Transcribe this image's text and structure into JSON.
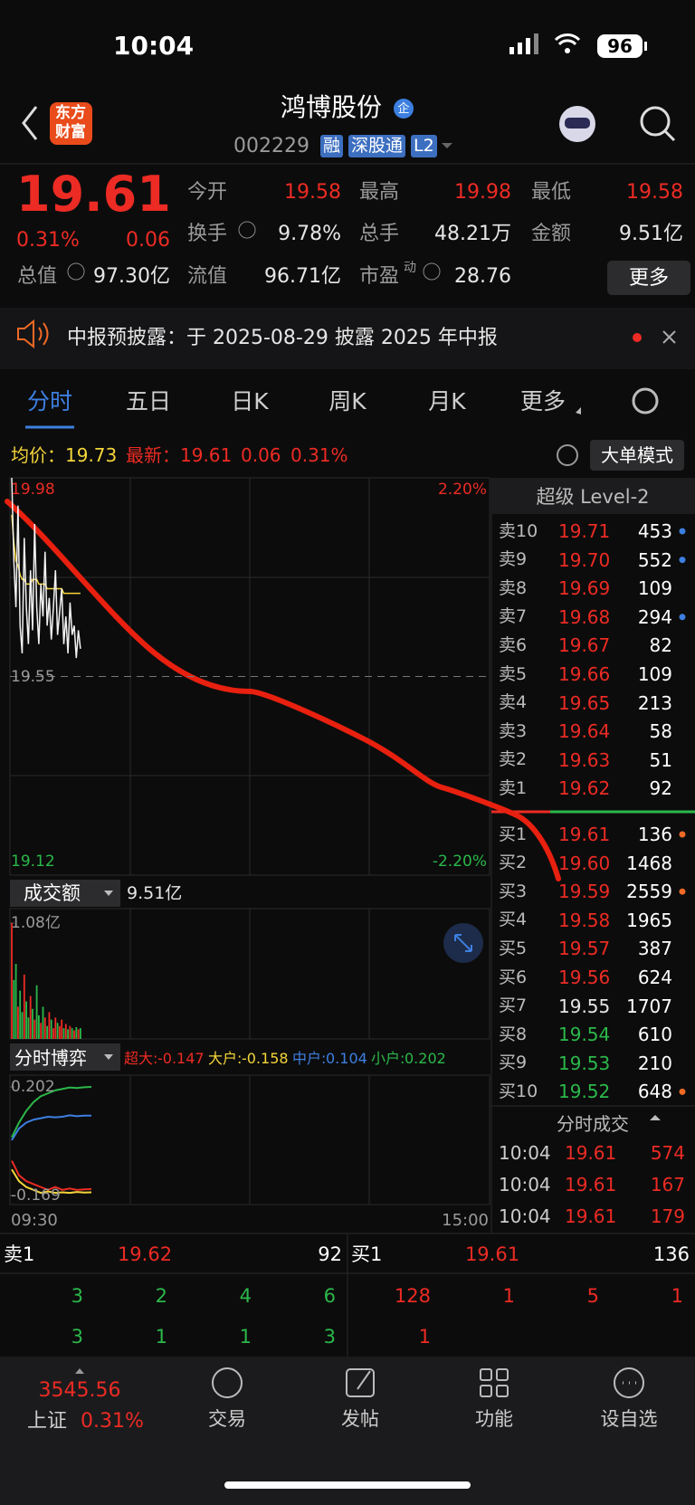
{
  "status": {
    "time": "10:04",
    "battery": "96"
  },
  "header": {
    "logo": [
      "东方",
      "财富"
    ],
    "title": "鸿博股份",
    "badge": "企",
    "code": "002229",
    "tags": [
      "融",
      "深股通",
      "L2"
    ]
  },
  "quote": {
    "price": "19.61",
    "percent": "0.31%",
    "change": "0.06",
    "fields": [
      {
        "label": "今开",
        "value": "19.58"
      },
      {
        "label": "最高",
        "value": "19.98"
      },
      {
        "label": "最低",
        "value": "19.58"
      },
      {
        "label": "换手",
        "value": "9.78%"
      },
      {
        "label": "总手",
        "value": "48.21万"
      },
      {
        "label": "金额",
        "value": "9.51亿"
      },
      {
        "label": "总值",
        "value": "97.30亿"
      },
      {
        "label": "流值",
        "value": "96.71亿"
      },
      {
        "label": "市盈",
        "value": "28.76"
      }
    ],
    "pe_mark": "动",
    "more": "更多"
  },
  "notice": {
    "text": "中报预披露：于 2025-08-29 披露 2025 年中报"
  },
  "tabs": [
    "分时",
    "五日",
    "日K",
    "周K",
    "月K",
    "更多"
  ],
  "infobar": {
    "avg_label": "均价：",
    "avg": "19.73",
    "latest_label": "最新：",
    "latest": "19.61",
    "change": "0.06",
    "percent": "0.31%",
    "mode": "大单模式"
  },
  "intraday": {
    "ylim": [
      19.12,
      19.98
    ],
    "yticks": [
      19.12,
      19.55,
      19.98
    ],
    "y2lim": [
      -2.2,
      2.2
    ],
    "y2ticks": [
      {
        "value": -2.2,
        "label": "-2.20%"
      },
      {
        "value": 2.2,
        "label": "2.20%"
      }
    ],
    "price": [
      19.98,
      19.8,
      19.7,
      19.92,
      19.66,
      19.6,
      19.85,
      19.7,
      19.62,
      19.78,
      19.65,
      19.88,
      19.7,
      19.62,
      19.75,
      19.68,
      19.82,
      19.66,
      19.72,
      19.63,
      19.7,
      19.78,
      19.64,
      19.69,
      19.74,
      19.62,
      19.68,
      19.6,
      19.71,
      19.64,
      19.66,
      19.59,
      19.65,
      19.61
    ],
    "avg": [
      19.9,
      19.84,
      19.8,
      19.79,
      19.77,
      19.76,
      19.76,
      19.75,
      19.75,
      19.75,
      19.76,
      19.76,
      19.76,
      19.75,
      19.75,
      19.75,
      19.75,
      19.74,
      19.74,
      19.74,
      19.74,
      19.74,
      19.74,
      19.74,
      19.74,
      19.73,
      19.73,
      19.73,
      19.73,
      19.73,
      19.73,
      19.73,
      19.73,
      19.73
    ],
    "start": "09:30",
    "end": "15:00"
  },
  "volume": {
    "label": "成交额",
    "total": "9.51亿",
    "ylim": [
      0,
      1.08
    ],
    "yticks": [
      {
        "value": 1.08,
        "label": "1.08亿"
      }
    ],
    "values": [
      1.08,
      0.55,
      0.7,
      0.3,
      0.45,
      0.25,
      0.6,
      0.35,
      0.2,
      0.4,
      0.28,
      0.18,
      0.5,
      0.22,
      0.15,
      0.3,
      0.2,
      0.12,
      0.25,
      0.18,
      0.1,
      0.2,
      0.15,
      0.12,
      0.18,
      0.1,
      0.14,
      0.09,
      0.12,
      0.1,
      0.08,
      0.11,
      0.09,
      0.1
    ]
  },
  "flow": {
    "label": "分时博弈",
    "ylim": [
      -0.169,
      0.202
    ],
    "yticks": [
      -0.169,
      0.202
    ],
    "series": [
      {
        "name": "超大:",
        "color": "#ec2b24",
        "value": -0.147,
        "values": [
          -0.05,
          -0.1,
          -0.12,
          -0.13,
          -0.14,
          -0.15,
          -0.14,
          -0.15,
          -0.145,
          -0.15,
          -0.148,
          -0.147
        ]
      },
      {
        "name": "大户:",
        "color": "#f5d53a",
        "value": -0.158,
        "values": [
          -0.08,
          -0.12,
          -0.14,
          -0.15,
          -0.16,
          -0.155,
          -0.16,
          -0.158,
          -0.16,
          -0.157,
          -0.159,
          -0.158
        ]
      },
      {
        "name": "中户:",
        "color": "#3d7fe0",
        "value": 0.104,
        "values": [
          0.02,
          0.06,
          0.08,
          0.09,
          0.095,
          0.1,
          0.098,
          0.1,
          0.105,
          0.102,
          0.104,
          0.104
        ]
      },
      {
        "name": "小户:",
        "color": "#2bb84a",
        "value": 0.202,
        "values": [
          0.03,
          0.08,
          0.12,
          0.15,
          0.17,
          0.18,
          0.19,
          0.195,
          0.2,
          0.198,
          0.201,
          0.202
        ]
      }
    ]
  },
  "orderbook": {
    "title": "超级 Level-2",
    "prev_close": "19.55",
    "sell": [
      {
        "label": "卖10",
        "price": "19.71",
        "volume": 453,
        "dot": "#3d7fe0"
      },
      {
        "label": "卖9",
        "price": "19.70",
        "volume": 552,
        "dot": "#3d7fe0"
      },
      {
        "label": "卖8",
        "price": "19.69",
        "volume": 109
      },
      {
        "label": "卖7",
        "price": "19.68",
        "volume": 294,
        "dot": "#3d7fe0"
      },
      {
        "label": "卖6",
        "price": "19.67",
        "volume": 82
      },
      {
        "label": "卖5",
        "price": "19.66",
        "volume": 109
      },
      {
        "label": "卖4",
        "price": "19.65",
        "volume": 213
      },
      {
        "label": "卖3",
        "price": "19.64",
        "volume": 58
      },
      {
        "label": "卖2",
        "price": "19.63",
        "volume": 51
      },
      {
        "label": "卖1",
        "price": "19.62",
        "volume": 92
      }
    ],
    "buy": [
      {
        "label": "买1",
        "price": "19.61",
        "volume": 136,
        "dot": "#f06a25"
      },
      {
        "label": "买2",
        "price": "19.60",
        "volume": 1468
      },
      {
        "label": "买3",
        "price": "19.59",
        "volume": 2559,
        "dot": "#f06a25"
      },
      {
        "label": "买4",
        "price": "19.58",
        "volume": 1965
      },
      {
        "label": "买5",
        "price": "19.57",
        "volume": 387
      },
      {
        "label": "买6",
        "price": "19.56",
        "volume": 624
      },
      {
        "label": "买7",
        "price": "19.55",
        "volume": 1707
      },
      {
        "label": "买8",
        "price": "19.54",
        "volume": 610
      },
      {
        "label": "买9",
        "price": "19.53",
        "volume": 210
      },
      {
        "label": "买10",
        "price": "19.52",
        "volume": 648,
        "dot": "#f06a25"
      }
    ]
  },
  "trades": {
    "title": "分时成交",
    "rows": [
      {
        "time": "10:04",
        "price": "19.61",
        "volume": 574
      },
      {
        "time": "10:04",
        "price": "19.61",
        "volume": 167
      },
      {
        "time": "10:04",
        "price": "19.61",
        "volume": 179
      }
    ]
  },
  "depth": {
    "sell": {
      "label": "卖1",
      "price": "19.62",
      "volume": 92,
      "queue": [
        [
          3,
          2,
          4,
          6
        ],
        [
          3,
          1,
          1,
          3
        ]
      ]
    },
    "buy": {
      "label": "买1",
      "price": "19.61",
      "volume": 136,
      "queue": [
        [
          128,
          1,
          5,
          1
        ],
        [
          1
        ]
      ]
    }
  },
  "nav": {
    "index": "3545.56",
    "index_name": "上证",
    "index_pct": "0.31%",
    "items": [
      "交易",
      "发帖",
      "功能",
      "设自选"
    ]
  }
}
